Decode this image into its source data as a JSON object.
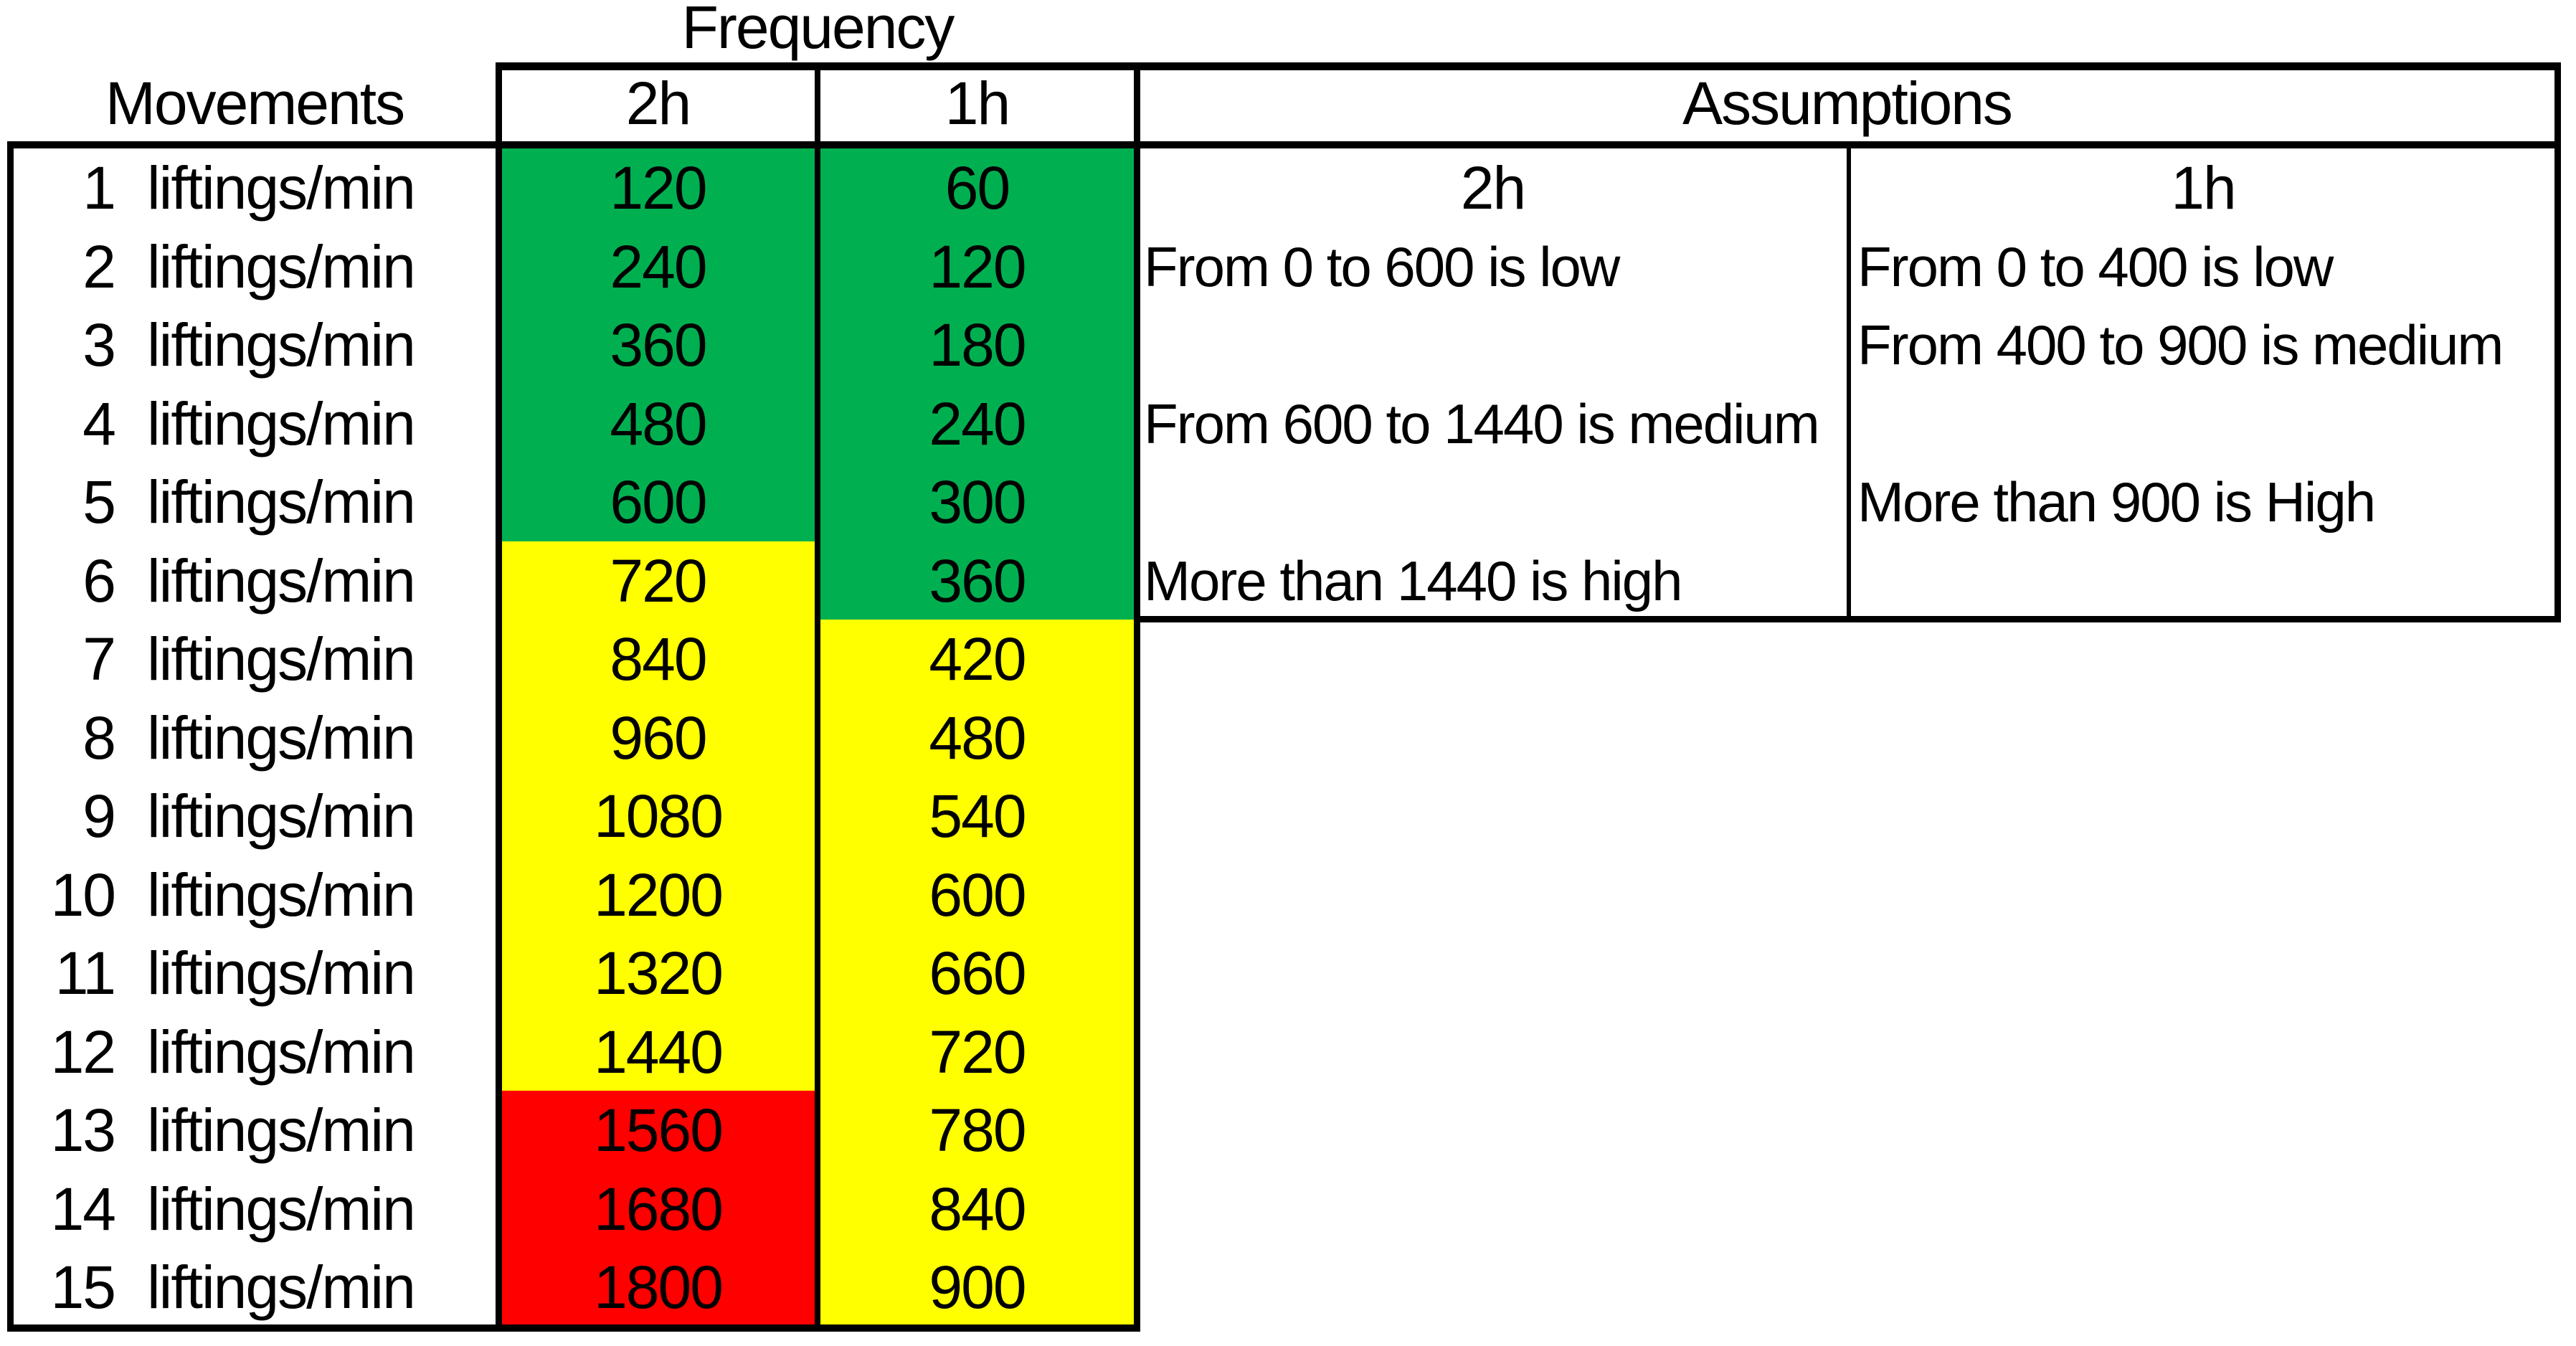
{
  "header": {
    "frequency_title": "Frequency",
    "movements_label": "Movements",
    "assumptions_label": "Assumptions",
    "freq_col_2h": "2h",
    "freq_col_1h": "1h",
    "assum_col_2h": "2h",
    "assum_col_1h": "1h"
  },
  "colors": {
    "low": "#00B050",
    "medium": "#FFFF00",
    "high": "#FF0000",
    "border": "#000000",
    "text": "#000000",
    "background": "#FFFFFF"
  },
  "chart_data": {
    "type": "table",
    "title": "Frequency",
    "row_header": "Movements",
    "columns": [
      "2h",
      "1h"
    ],
    "unit": "liftings/min",
    "color_legend": {
      "low": "green #00B050",
      "medium": "yellow #FFFF00",
      "high": "red #FF0000"
    },
    "rows": [
      {
        "movement": "1",
        "unit": "liftings/min",
        "freq_2h": "120",
        "level_2h": "low",
        "freq_1h": "60",
        "level_1h": "low"
      },
      {
        "movement": "2",
        "unit": "liftings/min",
        "freq_2h": "240",
        "level_2h": "low",
        "freq_1h": "120",
        "level_1h": "low"
      },
      {
        "movement": "3",
        "unit": "liftings/min",
        "freq_2h": "360",
        "level_2h": "low",
        "freq_1h": "180",
        "level_1h": "low"
      },
      {
        "movement": "4",
        "unit": "liftings/min",
        "freq_2h": "480",
        "level_2h": "low",
        "freq_1h": "240",
        "level_1h": "low"
      },
      {
        "movement": "5",
        "unit": "liftings/min",
        "freq_2h": "600",
        "level_2h": "low",
        "freq_1h": "300",
        "level_1h": "low"
      },
      {
        "movement": "6",
        "unit": "liftings/min",
        "freq_2h": "720",
        "level_2h": "medium",
        "freq_1h": "360",
        "level_1h": "low"
      },
      {
        "movement": "7",
        "unit": "liftings/min",
        "freq_2h": "840",
        "level_2h": "medium",
        "freq_1h": "420",
        "level_1h": "medium"
      },
      {
        "movement": "8",
        "unit": "liftings/min",
        "freq_2h": "960",
        "level_2h": "medium",
        "freq_1h": "480",
        "level_1h": "medium"
      },
      {
        "movement": "9",
        "unit": "liftings/min",
        "freq_2h": "1080",
        "level_2h": "medium",
        "freq_1h": "540",
        "level_1h": "medium"
      },
      {
        "movement": "10",
        "unit": "liftings/min",
        "freq_2h": "1200",
        "level_2h": "medium",
        "freq_1h": "600",
        "level_1h": "medium"
      },
      {
        "movement": "11",
        "unit": "liftings/min",
        "freq_2h": "1320",
        "level_2h": "medium",
        "freq_1h": "660",
        "level_1h": "medium"
      },
      {
        "movement": "12",
        "unit": "liftings/min",
        "freq_2h": "1440",
        "level_2h": "medium",
        "freq_1h": "720",
        "level_1h": "medium"
      },
      {
        "movement": "13",
        "unit": "liftings/min",
        "freq_2h": "1560",
        "level_2h": "high",
        "freq_1h": "780",
        "level_1h": "medium"
      },
      {
        "movement": "14",
        "unit": "liftings/min",
        "freq_2h": "1680",
        "level_2h": "high",
        "freq_1h": "840",
        "level_1h": "medium"
      },
      {
        "movement": "15",
        "unit": "liftings/min",
        "freq_2h": "1800",
        "level_2h": "high",
        "freq_1h": "900",
        "level_1h": "medium"
      }
    ]
  },
  "assumptions": {
    "col_2h": {
      "header": "2h",
      "items": [
        {
          "text": "From 0 to 600 is low",
          "table_row": 2
        },
        {
          "text": "From 600 to 1440 is medium",
          "table_row": 4
        },
        {
          "text": "More than 1440 is high",
          "table_row": 6
        }
      ]
    },
    "col_1h": {
      "header": "1h",
      "items": [
        {
          "text": "From 0 to 400 is low",
          "table_row": 2
        },
        {
          "text": "From 400 to 900 is medium",
          "table_row": 3
        },
        {
          "text": "More than 900 is High",
          "table_row": 5
        }
      ]
    }
  }
}
